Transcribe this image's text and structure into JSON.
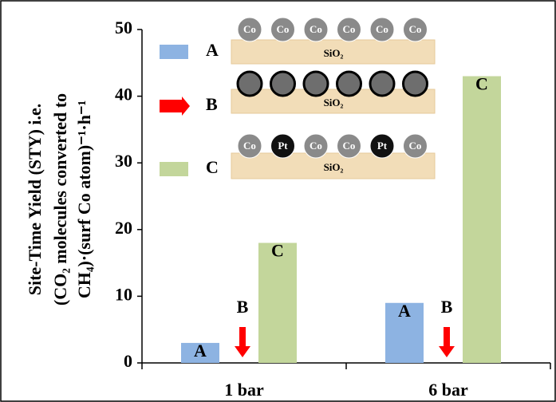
{
  "chart_data": {
    "type": "bar",
    "ylabel": [
      "Site-Time Yield (STY) i.e.",
      "(CO₂ molecules converted to",
      "CH₄)·(surf Co atom)⁻¹·h⁻¹"
    ],
    "categories": [
      "1 bar",
      "6 bar"
    ],
    "series": [
      {
        "name": "A",
        "color": "#8db3e2",
        "values": [
          3,
          9
        ]
      },
      {
        "name": "B",
        "color": "#ff0000",
        "values": [
          0,
          0
        ]
      },
      {
        "name": "C",
        "color": "#c3d69b",
        "values": [
          18,
          43
        ]
      }
    ],
    "ylim": [
      0,
      50
    ],
    "yticks": [
      0,
      10,
      20,
      30,
      40,
      50
    ],
    "legend_diagrams": [
      {
        "particles": [
          "Co",
          "Co",
          "Co",
          "Co",
          "Co",
          "Co"
        ],
        "support": "SiO₂"
      },
      {
        "particles": [
          null,
          null,
          null,
          null,
          null,
          null
        ],
        "support": "SiO₂"
      },
      {
        "particles": [
          "Co",
          "Pt",
          "Co",
          "Co",
          "Pt",
          "Co"
        ],
        "support": "SiO₂"
      }
    ]
  }
}
